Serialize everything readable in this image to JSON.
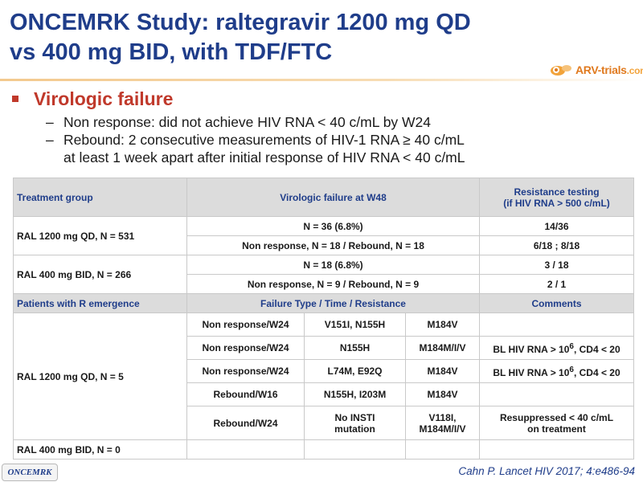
{
  "slide": {
    "title_line1": "ONCEMRK Study: raltegravir 1200 mg QD",
    "title_line2": "vs 400 mg BID, with TDF/FTC",
    "logo_text_main": "ARV-trials",
    "logo_text_suffix": ".com"
  },
  "bullets": {
    "main": "Virologic failure",
    "sub1": "Non response: did not achieve HIV RNA < 40 c/mL by W24",
    "sub2_line1": "Rebound: 2 consecutive measurements of HIV-1 RNA ≥ 40 c/mL",
    "sub2_line2": "at least 1 week apart after initial response of HIV RNA < 40 c/mL",
    "dash": "–"
  },
  "table": {
    "header1": {
      "group": "Treatment group",
      "vf": "Virologic failure at W48",
      "rt_line1": "Resistance testing",
      "rt_line2": "(if HIV RNA > 500 c/mL)"
    },
    "ral1200": {
      "group": "RAL 1200 mg QD, N = 531",
      "vf1": "N = 36 (6.8%)",
      "rt1": "14/36",
      "vf2": "Non response, N = 18 / Rebound, N = 18",
      "rt2": "6/18 ; 8/18"
    },
    "ral400": {
      "group": "RAL 400 mg BID, N = 266",
      "vf1": "N = 18 (6.8%)",
      "rt1": "3 / 18",
      "vf2": "Non response, N = 9 / Rebound, N = 9",
      "rt2": "2 / 1"
    },
    "header2": {
      "group": "Patients with R emergence",
      "ft": "Failure Type / Time / Resistance",
      "comments": "Comments"
    },
    "emergence_group": "RAL 1200 mg QD, N = 5",
    "emergence_rows": [
      {
        "type": "Non response/W24",
        "insti": "V151I, N155H",
        "nrti": "M184V",
        "comment": ""
      },
      {
        "type": "Non response/W24",
        "insti": "N155H",
        "nrti": "M184M/I/V",
        "comment_pre": "BL HIV RNA > 10",
        "comment_sup": "6",
        "comment_post": ", CD4 < 20"
      },
      {
        "type": "Non response/W24",
        "insti": "L74M, E92Q",
        "nrti": "M184V",
        "comment_pre": "BL HIV RNA > 10",
        "comment_sup": "6",
        "comment_post": ", CD4 < 20"
      },
      {
        "type": "Rebound/W16",
        "insti": "N155H, I203M",
        "nrti": "M184V",
        "comment": ""
      },
      {
        "type": "Rebound/W24",
        "insti_line1": "No INSTI",
        "insti_line2": "mutation",
        "nrti_line1": "V118I,",
        "nrti_line2": "M184M/I/V",
        "comment_line1": "Resuppressed < 40 c/mL",
        "comment_line2": "on treatment"
      }
    ],
    "last_group": "RAL 400 mg BID, N = 0"
  },
  "footer": {
    "study_logo": "ONCEMRK",
    "citation": "Cahn P. Lancet HIV 2017; 4:e486-94"
  },
  "colors": {
    "title": "#1f3d8a",
    "accent_red": "#c0392b",
    "header_bg": "#dcdcdc",
    "logo_orange": "#e07a1f"
  }
}
